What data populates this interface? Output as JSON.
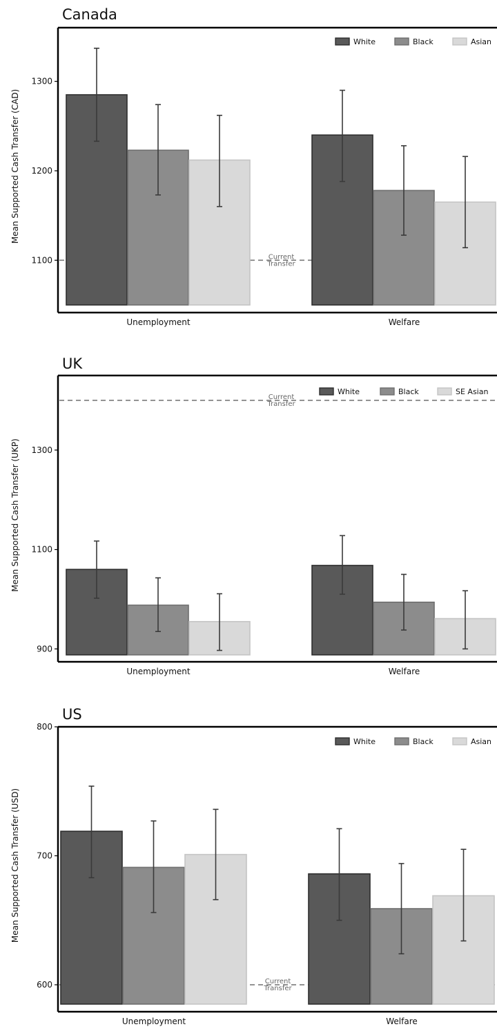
{
  "chart_data": [
    {
      "type": "bar",
      "title": "Canada",
      "ylabel": "Mean Supported Cash Transfer (CAD)",
      "ylim": [
        1050,
        1360
      ],
      "yticks": [
        1100,
        1200,
        1300
      ],
      "categories": [
        "Unemployment",
        "Welfare"
      ],
      "series": [
        {
          "name": "White",
          "color": "#595959",
          "values": [
            1285,
            1240
          ],
          "error_low": [
            1233,
            1188
          ],
          "error_high": [
            1337,
            1290
          ]
        },
        {
          "name": "Black",
          "color": "#8c8c8c",
          "values": [
            1223,
            1178
          ],
          "error_low": [
            1173,
            1128
          ],
          "error_high": [
            1274,
            1228
          ]
        },
        {
          "name": "Asian",
          "color": "#d9d9d9",
          "values": [
            1212,
            1165
          ],
          "error_low": [
            1160,
            1114
          ],
          "error_high": [
            1262,
            1216
          ]
        }
      ],
      "reference_line": {
        "value": 1100,
        "label": [
          "Current",
          "Transfer"
        ]
      },
      "legend": "top-right",
      "grid": false
    },
    {
      "type": "bar",
      "title": "UK",
      "ylabel": "Mean Supported Cash Transfer (UKP)",
      "ylim": [
        888,
        1450
      ],
      "yticks": [
        900,
        1100,
        1300
      ],
      "categories": [
        "Unemployment",
        "Welfare"
      ],
      "series": [
        {
          "name": "White",
          "color": "#595959",
          "values": [
            1060,
            1068
          ],
          "error_low": [
            1002,
            1010
          ],
          "error_high": [
            1117,
            1128
          ]
        },
        {
          "name": "Black",
          "color": "#8c8c8c",
          "values": [
            988,
            994
          ],
          "error_low": [
            935,
            938
          ],
          "error_high": [
            1043,
            1050
          ]
        },
        {
          "name": "SE Asian",
          "color": "#d9d9d9",
          "values": [
            955,
            961
          ],
          "error_low": [
            897,
            900
          ],
          "error_high": [
            1011,
            1017
          ]
        }
      ],
      "reference_line": {
        "value": 1400,
        "label": [
          "Current",
          "Transfer"
        ]
      },
      "legend": "top-right",
      "grid": false
    },
    {
      "type": "bar",
      "title": "US",
      "ylabel": "Mean Supported Cash Transfer (USD)",
      "ylim": [
        585,
        800
      ],
      "yticks": [
        600,
        700,
        800
      ],
      "categories": [
        "Unemployment",
        "Welfare"
      ],
      "series": [
        {
          "name": "White",
          "color": "#595959",
          "values": [
            719,
            686
          ],
          "error_low": [
            683,
            650
          ],
          "error_high": [
            754,
            721
          ]
        },
        {
          "name": "Black",
          "color": "#8c8c8c",
          "values": [
            691,
            659
          ],
          "error_low": [
            656,
            624
          ],
          "error_high": [
            727,
            694
          ]
        },
        {
          "name": "Asian",
          "color": "#d9d9d9",
          "values": [
            701,
            669
          ],
          "error_low": [
            666,
            634
          ],
          "error_high": [
            736,
            705
          ]
        }
      ],
      "reference_line": {
        "value": 600,
        "label": [
          "Current",
          "Transfer"
        ]
      },
      "legend": "top-right",
      "grid": false
    }
  ]
}
